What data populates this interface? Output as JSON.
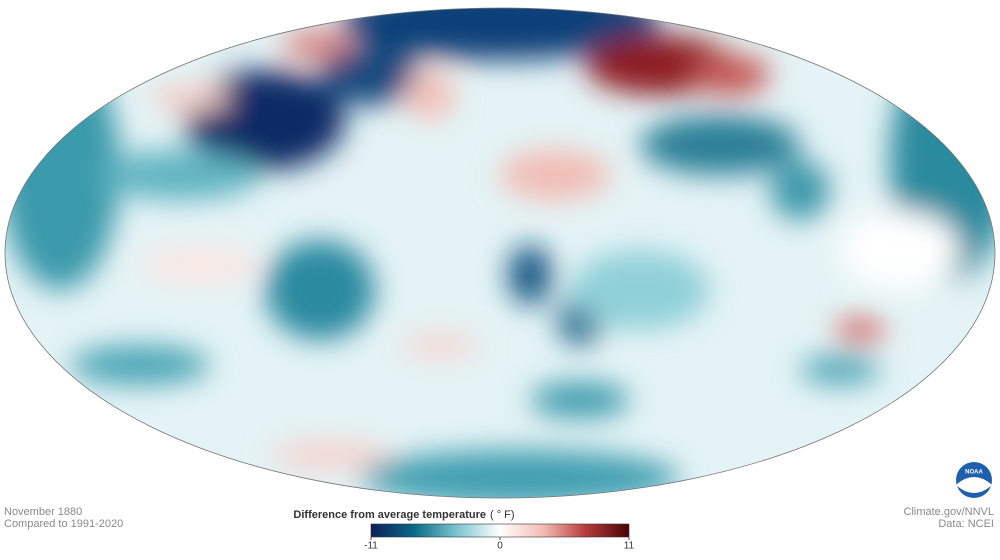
{
  "map": {
    "date": "November 1880",
    "baseline": "Compared to 1991-2020"
  },
  "legend": {
    "title": "Difference from average temperature",
    "unit": "( ° F)",
    "range": [
      -11,
      11
    ],
    "ticks": [
      -11,
      0,
      11
    ],
    "colors": [
      "#0b1f5c",
      "#0a6a86",
      "#7cc5cf",
      "#ffffff",
      "#f2bcb4",
      "#b53b3b",
      "#4a0306"
    ]
  },
  "credits": {
    "source": "Climate.gov/NNVL",
    "data": "Data: NCEI"
  },
  "logo": "NOAA"
}
